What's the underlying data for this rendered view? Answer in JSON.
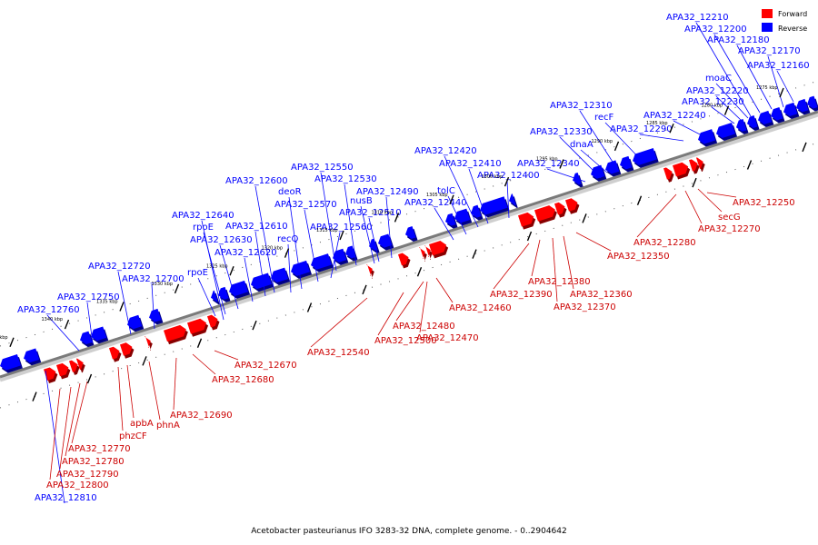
{
  "legend": {
    "forward_label": "Forward",
    "reverse_label": "Reverse",
    "forward_color": "#ff0000",
    "reverse_color": "#0000ff"
  },
  "caption": "Acetobacter pasteurianus IFO 3283-32 DNA, complete genome. - 0..2904642",
  "scale": {
    "unit": "kbp",
    "ticks": [
      1275,
      1280,
      1285,
      1290,
      1295,
      1300,
      1305,
      1310,
      1315,
      1320,
      1325,
      1330,
      1335,
      1340,
      1345
    ]
  },
  "reverse_genes": [
    "APA32_12160",
    "APA32_12170",
    "APA32_12180",
    "APA32_12200",
    "APA32_12210",
    "moaC",
    "APA32_12220",
    "APA32_12230",
    "APA32_12240",
    "APA32_12290",
    "recF",
    "APA32_12310",
    "dnaA",
    "APA32_12330",
    "APA32_12340",
    "APA32_12400",
    "APA32_12410",
    "APA32_12420",
    "tolC",
    "APA32_12440",
    "APA32_12490",
    "APA32_12510",
    "nusB",
    "APA32_12530",
    "APA32_12550",
    "APA32_12560",
    "APA32_12570",
    "deoR",
    "recQ",
    "APA32_12600",
    "APA32_12610",
    "APA32_12620",
    "APA32_12630",
    "rpoE",
    "APA32_12640",
    "rpoE",
    "APA32_12700",
    "APA32_12720",
    "APA32_12750",
    "APA32_12760",
    "APA32_12810"
  ],
  "forward_genes": [
    "APA32_12250",
    "secG",
    "APA32_12270",
    "APA32_12280",
    "APA32_12350",
    "APA32_12360",
    "APA32_12370",
    "APA32_12380",
    "APA32_12390",
    "APA32_12460",
    "APA32_12470",
    "APA32_12480",
    "APA32_12500",
    "APA32_12540",
    "APA32_12670",
    "APA32_12680",
    "APA32_12690",
    "phnA",
    "apbA",
    "phzCF",
    "APA32_12770",
    "APA32_12780",
    "APA32_12790",
    "APA32_12800"
  ]
}
